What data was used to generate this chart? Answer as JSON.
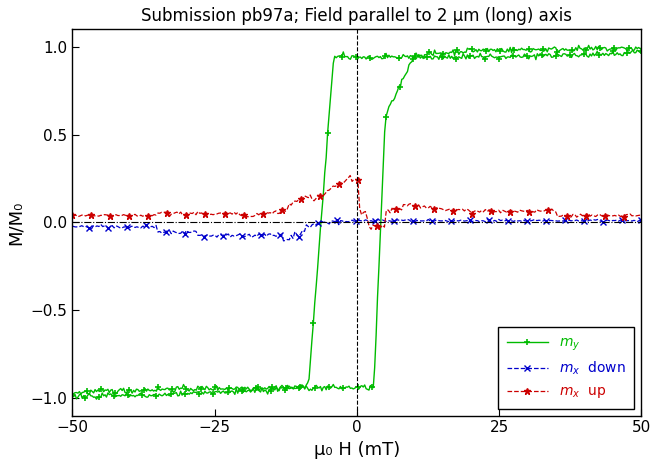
{
  "title": "Submission pb97a; Field parallel to 2 μm (long) axis",
  "xlabel": "μ₀ H (mT)",
  "ylabel": "M/M₀",
  "xlim": [
    -50,
    50
  ],
  "ylim": [
    -1.1,
    1.1
  ],
  "yticks": [
    -1.0,
    -0.5,
    0.0,
    0.5,
    1.0
  ],
  "xticks": [
    -50,
    -25,
    0,
    25,
    50
  ],
  "bg_color": "#ffffff",
  "colors": {
    "my": "#00bb00",
    "mx_down": "#0000cc",
    "mx_up": "#cc0000"
  }
}
